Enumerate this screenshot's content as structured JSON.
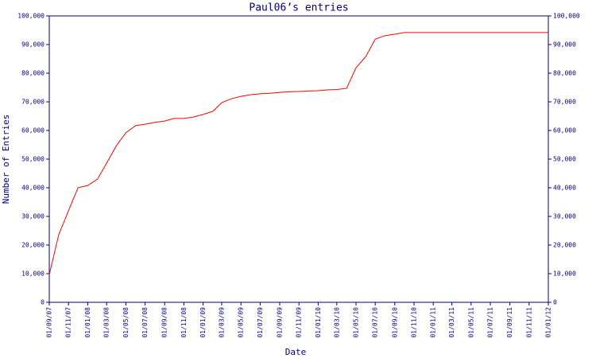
{
  "chart_data": {
    "type": "line",
    "title": "Paul06’s entries",
    "x_label": "Date",
    "y_label": "Number of Entries",
    "x": [
      "2007-09-01",
      "2007-10-01",
      "2007-11-01",
      "2007-12-01",
      "2008-01-01",
      "2008-02-01",
      "2008-03-01",
      "2008-04-01",
      "2008-05-01",
      "2008-06-01",
      "2008-07-01",
      "2008-08-01",
      "2008-09-01",
      "2008-10-01",
      "2008-11-01",
      "2008-12-01",
      "2009-01-01",
      "2009-02-01",
      "2009-03-01",
      "2009-04-01",
      "2009-05-01",
      "2009-06-01",
      "2009-07-01",
      "2009-08-01",
      "2009-09-01",
      "2009-10-01",
      "2009-11-01",
      "2009-12-01",
      "2010-01-01",
      "2010-02-01",
      "2010-03-01",
      "2010-04-01",
      "2010-05-01",
      "2010-06-01",
      "2010-07-01",
      "2010-08-01",
      "2010-09-01",
      "2010-10-01",
      "2012-01-01"
    ],
    "series": [
      {
        "color": "#ff0000",
        "values": [
          9700,
          23600,
          32000,
          40000,
          40800,
          43000,
          48600,
          54700,
          59200,
          61700,
          62200,
          62800,
          63300,
          64200,
          64200,
          64700,
          65600,
          66700,
          69700,
          71100,
          71900,
          72500,
          72800,
          73000,
          73300,
          73500,
          73600,
          73800,
          73900,
          74200,
          74300,
          74700,
          81900,
          85800,
          91900,
          93100,
          93600,
          94200,
          94200
        ]
      }
    ],
    "xlim": [
      "2007-09-01",
      "2012-01-01"
    ],
    "xticks": [
      {
        "value": "2007-09-01",
        "label": "01/09/07"
      },
      {
        "value": "2007-11-01",
        "label": "01/11/07"
      },
      {
        "value": "2008-01-01",
        "label": "01/01/08"
      },
      {
        "value": "2008-03-01",
        "label": "01/03/08"
      },
      {
        "value": "2008-05-01",
        "label": "01/05/08"
      },
      {
        "value": "2008-07-01",
        "label": "01/07/08"
      },
      {
        "value": "2008-09-01",
        "label": "01/09/08"
      },
      {
        "value": "2008-11-01",
        "label": "01/11/08"
      },
      {
        "value": "2009-01-01",
        "label": "01/01/09"
      },
      {
        "value": "2009-03-01",
        "label": "01/03/09"
      },
      {
        "value": "2009-05-01",
        "label": "01/05/09"
      },
      {
        "value": "2009-07-01",
        "label": "01/07/09"
      },
      {
        "value": "2009-09-01",
        "label": "01/09/09"
      },
      {
        "value": "2009-11-01",
        "label": "01/11/09"
      },
      {
        "value": "2010-01-01",
        "label": "01/01/10"
      },
      {
        "value": "2010-03-01",
        "label": "01/03/10"
      },
      {
        "value": "2010-05-01",
        "label": "01/05/10"
      },
      {
        "value": "2010-07-01",
        "label": "01/07/10"
      },
      {
        "value": "2010-09-01",
        "label": "01/09/10"
      },
      {
        "value": "2010-11-01",
        "label": "01/11/10"
      },
      {
        "value": "2011-01-01",
        "label": "01/01/11"
      },
      {
        "value": "2011-03-01",
        "label": "01/03/11"
      },
      {
        "value": "2011-05-01",
        "label": "01/05/11"
      },
      {
        "value": "2011-07-01",
        "label": "01/07/11"
      },
      {
        "value": "2011-09-01",
        "label": "01/09/11"
      },
      {
        "value": "2011-11-01",
        "label": "01/11/11"
      },
      {
        "value": "2012-01-01",
        "label": "01/01/12"
      }
    ],
    "ylim": [
      0,
      100000
    ],
    "yticks": [
      0,
      {
        "value": 10000,
        "label": "10,000"
      },
      {
        "value": 20000,
        "label": "20,000"
      },
      {
        "value": 30000,
        "label": "30,000"
      },
      {
        "value": 40000,
        "label": "40,000"
      },
      {
        "value": 50000,
        "label": "50,000"
      },
      {
        "value": 60000,
        "label": "60,000"
      },
      {
        "value": 70000,
        "label": "70,000"
      },
      {
        "value": 80000,
        "label": "80,000"
      },
      {
        "value": 90000,
        "label": "90,000"
      },
      {
        "value": 100000,
        "label": "100,000"
      }
    ],
    "right_axis": true
  }
}
